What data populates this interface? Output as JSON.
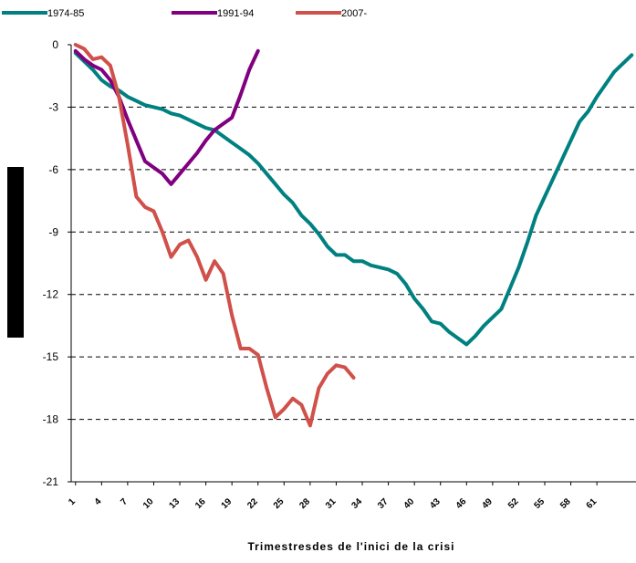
{
  "chart_data": {
    "type": "line",
    "x_label": "Trimestresdes de l'inici de la crisi",
    "x": [
      1,
      2,
      3,
      4,
      5,
      6,
      7,
      8,
      9,
      10,
      11,
      12,
      13,
      14,
      15,
      16,
      17,
      18,
      19,
      20,
      21,
      22,
      23,
      24,
      25,
      26,
      27,
      28,
      29,
      30,
      31,
      32,
      33,
      34,
      35,
      36,
      37,
      38,
      39,
      40,
      41,
      42,
      43,
      44,
      45,
      46,
      47,
      48,
      49,
      50,
      51,
      52,
      53,
      54,
      55,
      56,
      57,
      58,
      59,
      60,
      61,
      62,
      63,
      64,
      65
    ],
    "xlim": [
      0.5,
      65.5
    ],
    "xticks": [
      1,
      4,
      7,
      10,
      13,
      16,
      19,
      22,
      25,
      28,
      31,
      34,
      37,
      40,
      43,
      46,
      49,
      52,
      55,
      58,
      61
    ],
    "ylim": [
      -21,
      0
    ],
    "yticks": [
      0,
      -3,
      -6,
      -9,
      -12,
      -15,
      -18,
      -21
    ],
    "grid": true,
    "legend": "top",
    "series": [
      {
        "name": "1974-85",
        "color": "#008080",
        "values": [
          -0.4,
          -0.8,
          -1.2,
          -1.7,
          -2.0,
          -2.2,
          -2.5,
          -2.7,
          -2.9,
          -3.0,
          -3.1,
          -3.3,
          -3.4,
          -3.6,
          -3.8,
          -4.0,
          -4.1,
          -4.4,
          -4.7,
          -5.0,
          -5.3,
          -5.7,
          -6.2,
          -6.7,
          -7.2,
          -7.6,
          -8.2,
          -8.6,
          -9.1,
          -9.7,
          -10.1,
          -10.1,
          -10.4,
          -10.4,
          -10.6,
          -10.7,
          -10.8,
          -11.0,
          -11.5,
          -12.2,
          -12.7,
          -13.3,
          -13.4,
          -13.8,
          -14.1,
          -14.4,
          -14.0,
          -13.5,
          -13.1,
          -12.7,
          -11.7,
          -10.7,
          -9.5,
          -8.2,
          -7.3,
          -6.4,
          -5.5,
          -4.6,
          -3.7,
          -3.2,
          -2.5,
          -1.9,
          -1.3,
          -0.9,
          -0.5
        ]
      },
      {
        "name": "1991-94",
        "color": "#800080",
        "values": [
          -0.3,
          -0.7,
          -1.0,
          -1.2,
          -1.7,
          -2.5,
          -3.6,
          -4.6,
          -5.6,
          -5.9,
          -6.2,
          -6.7,
          -6.2,
          -5.7,
          -5.2,
          -4.6,
          -4.1,
          -3.8,
          -3.5,
          -2.4,
          -1.2,
          -0.3,
          null,
          null,
          null,
          null,
          null,
          null,
          null,
          null,
          null,
          null,
          null,
          null,
          null,
          null,
          null,
          null,
          null,
          null,
          null,
          null,
          null,
          null,
          null,
          null,
          null,
          null,
          null,
          null,
          null,
          null,
          null,
          null,
          null,
          null,
          null,
          null,
          null,
          null,
          null,
          null,
          null,
          null,
          null
        ]
      },
      {
        "name": "2007-",
        "color": "#d0504a",
        "values": [
          0,
          -0.2,
          -0.7,
          -0.6,
          -1.0,
          -2.5,
          -4.8,
          -7.3,
          -7.8,
          -8.0,
          -9.0,
          -10.2,
          -9.6,
          -9.4,
          -10.2,
          -11.3,
          -10.4,
          -11.0,
          -13.0,
          -14.6,
          -14.6,
          -14.9,
          -16.5,
          -17.9,
          -17.5,
          -17.0,
          -17.3,
          -18.3,
          -16.5,
          -15.8,
          -15.4,
          -15.5,
          -16.0,
          null,
          null,
          null,
          null,
          null,
          null,
          null,
          null,
          null,
          null,
          null,
          null,
          null,
          null,
          null,
          null,
          null,
          null,
          null,
          null,
          null,
          null,
          null,
          null,
          null,
          null,
          null,
          null,
          null,
          null,
          null,
          null
        ]
      }
    ]
  }
}
